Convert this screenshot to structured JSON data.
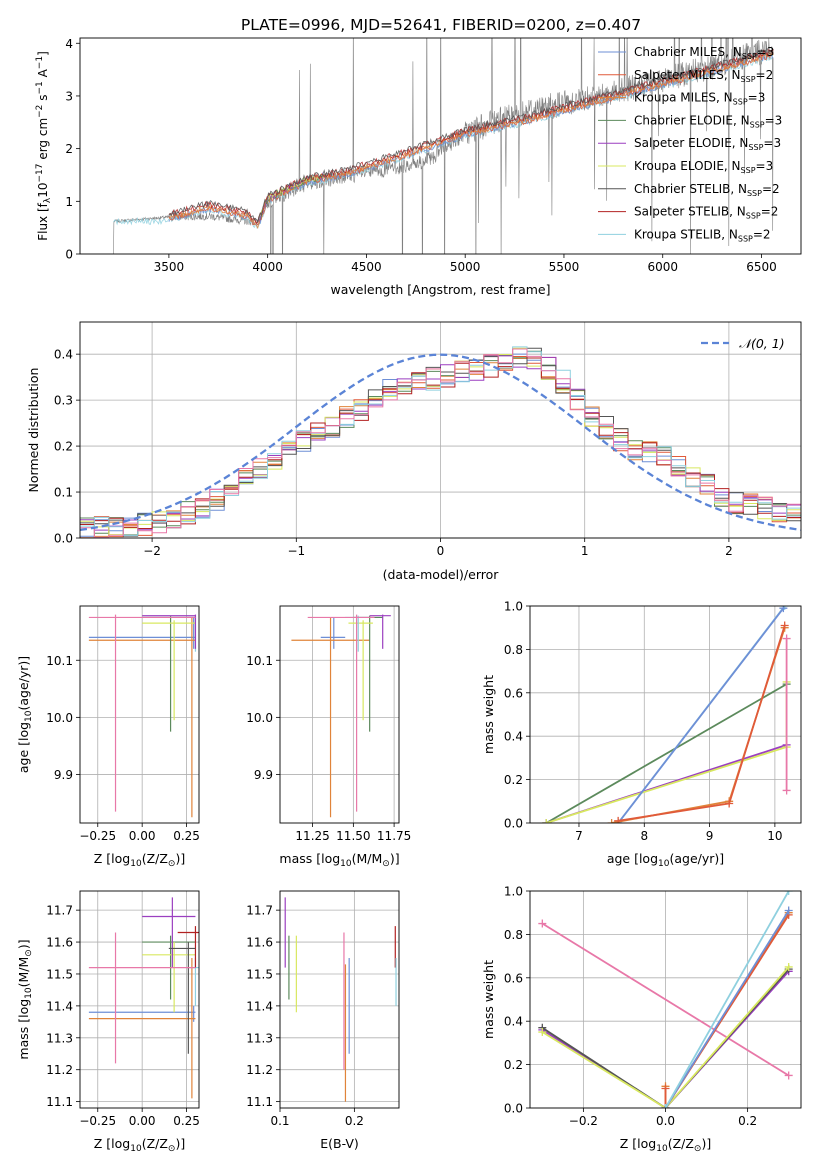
{
  "figure_title": "PLATE=0996, MJD=52641, FIBERID=0200, z=0.407",
  "colors": {
    "Chabrier MILES": "#6e8fd6",
    "Salpeter MILES": "#e05a3a",
    "Kroupa MILES": "#e0843a",
    "Chabrier ELODIE": "#5c8a5c",
    "Salpeter ELODIE": "#9b3fc0",
    "Kroupa ELODIE": "#d8e860",
    "Chabrier STELIB": "#555555",
    "Salpeter STELIB": "#b22222",
    "Kroupa STELIB": "#8fd0df",
    "pink": "#e878a8",
    "data": "#808080",
    "normal": "#5b84d6"
  },
  "chart_data": [
    {
      "id": "spectrum",
      "type": "line",
      "xlabel": "wavelength [Angstrom, rest frame]",
      "ylabel": "Flux [f$_\\lambda$10$^{-17}$ erg cm$^{-2}$ s$^{-1}$ A$^{-1}$]",
      "ylabel_parts": [
        "Flux [f",
        "λ",
        "10",
        "−17",
        " erg cm",
        "−2",
        " s",
        "−1",
        " A",
        "−1",
        "]"
      ],
      "xlim": [
        3050,
        6700
      ],
      "ylim": [
        0,
        4.1
      ],
      "xticks": [
        3500,
        4000,
        4500,
        5000,
        5500,
        6000,
        6500
      ],
      "yticks": [
        0,
        1,
        2,
        3,
        4
      ],
      "legend_position": "top-right",
      "legend": [
        {
          "model": "Chabrier MILES",
          "n": "3"
        },
        {
          "model": "Salpeter MILES",
          "n": "2"
        },
        {
          "model": "Kroupa MILES",
          "n": "3"
        },
        {
          "model": "Chabrier ELODIE",
          "n": "3"
        },
        {
          "model": "Salpeter ELODIE",
          "n": "3"
        },
        {
          "model": "Kroupa ELODIE",
          "n": "3"
        },
        {
          "model": "Chabrier STELIB",
          "n": "2"
        },
        {
          "model": "Salpeter STELIB",
          "n": "2"
        },
        {
          "model": "Kroupa STELIB",
          "n": "2"
        }
      ],
      "legend_suffix": ", N",
      "legend_sub": "SSP",
      "data_anchor": [
        [
          3220,
          0.62
        ],
        [
          3500,
          0.7
        ],
        [
          3700,
          0.72
        ],
        [
          3950,
          0.6
        ],
        [
          4000,
          1.0
        ],
        [
          4200,
          1.35
        ],
        [
          4500,
          1.55
        ],
        [
          4800,
          1.75
        ],
        [
          5000,
          2.3
        ],
        [
          5300,
          2.7
        ],
        [
          5600,
          2.95
        ],
        [
          5900,
          3.2
        ],
        [
          6200,
          3.5
        ],
        [
          6550,
          3.9
        ]
      ],
      "model_anchor": [
        [
          3500,
          0.7
        ],
        [
          3700,
          0.9
        ],
        [
          3900,
          0.75
        ],
        [
          3950,
          0.55
        ],
        [
          4000,
          1.05
        ],
        [
          4200,
          1.4
        ],
        [
          4400,
          1.55
        ],
        [
          4700,
          1.9
        ],
        [
          5000,
          2.3
        ],
        [
          5300,
          2.55
        ],
        [
          5600,
          2.85
        ],
        [
          5900,
          3.15
        ],
        [
          6200,
          3.45
        ],
        [
          6550,
          3.8
        ]
      ]
    },
    {
      "id": "residuals",
      "type": "histogram",
      "xlabel": "(data-model)/error",
      "ylabel": "Normed distribution",
      "xlim": [
        -2.5,
        2.5
      ],
      "ylim": [
        0,
        0.47
      ],
      "xticks": [
        -2,
        -1,
        0,
        1,
        2
      ],
      "yticks": [
        0.0,
        0.1,
        0.2,
        0.3,
        0.4
      ],
      "legend_position": "top-right",
      "legend": [
        "𝒩(0, 1)"
      ],
      "bin_width": 0.1,
      "hist_anchor": [
        [
          -2.5,
          0.02
        ],
        [
          -2.0,
          0.03
        ],
        [
          -1.6,
          0.07
        ],
        [
          -1.3,
          0.14
        ],
        [
          -1.0,
          0.2
        ],
        [
          -0.6,
          0.27
        ],
        [
          -0.3,
          0.33
        ],
        [
          0.0,
          0.35
        ],
        [
          0.3,
          0.37
        ],
        [
          0.6,
          0.4
        ],
        [
          0.8,
          0.36
        ],
        [
          1.0,
          0.28
        ],
        [
          1.3,
          0.2
        ],
        [
          1.6,
          0.17
        ],
        [
          2.0,
          0.08
        ],
        [
          2.5,
          0.05
        ]
      ]
    },
    {
      "id": "age-vs-Z",
      "type": "scatter",
      "xlabel": "Z [log",
      "xlabel_parts": [
        "Z [log",
        "10",
        "(Z/Z",
        "⊙",
        ")]"
      ],
      "ylabel_parts": [
        "age  [log",
        "10",
        "(age/yr)]"
      ],
      "xlim": [
        -0.35,
        0.32
      ],
      "ylim": [
        9.815,
        10.195
      ],
      "xticks": [
        -0.25,
        0.0,
        0.25
      ],
      "xticklabels": [
        "−0.25",
        "0.00",
        "0.25"
      ],
      "yticks": [
        9.9,
        10.0,
        10.1
      ],
      "yticklabels": [
        "9.9",
        "10.0",
        "10.1"
      ],
      "points": [
        {
          "c": "#6e8fd6",
          "x": 0.29,
          "y": 10.14,
          "xl": -0.3,
          "xh": 0.3,
          "yl": 10.12,
          "yh": 10.175
        },
        {
          "c": "#e0843a",
          "x": 0.28,
          "y": 10.135,
          "xl": -0.3,
          "xh": 0.3,
          "yl": 9.825,
          "yh": 10.175
        },
        {
          "c": "#5c8a5c",
          "x": 0.16,
          "y": 10.175,
          "xl": 0.0,
          "xh": 0.3,
          "yl": 9.975,
          "yh": 10.178
        },
        {
          "c": "#d8e860",
          "x": 0.18,
          "y": 10.165,
          "xl": 0.0,
          "xh": 0.3,
          "yl": 9.995,
          "yh": 10.17
        },
        {
          "c": "#8fd0df",
          "x": 0.3,
          "y": 10.175,
          "xl": 0.0,
          "xh": 0.3,
          "yl": 10.115,
          "yh": 10.178
        },
        {
          "c": "#9b3fc0",
          "x": 0.3,
          "y": 10.178,
          "xl": 0.0,
          "xh": 0.3,
          "yl": 10.12,
          "yh": 10.18
        },
        {
          "c": "#e878a8",
          "x": -0.15,
          "y": 10.175,
          "xl": -0.3,
          "xh": 0.3,
          "yl": 9.835,
          "yh": 10.18
        }
      ]
    },
    {
      "id": "age-vs-mass",
      "type": "scatter",
      "xlabel_parts": [
        "mass [log",
        "10",
        "(M/M",
        "⊙",
        ")]"
      ],
      "xlim": [
        11.05,
        11.78
      ],
      "ylim": [
        9.815,
        10.195
      ],
      "xticks": [
        11.25,
        11.5,
        11.75
      ],
      "xticklabels": [
        "11.25",
        "11.50",
        "11.75"
      ],
      "yticks": [
        9.9,
        10.0,
        10.1
      ],
      "yticklabels": [
        "9.9",
        "10.0",
        "10.1"
      ],
      "points": [
        {
          "c": "#6e8fd6",
          "x": 11.38,
          "y": 10.14,
          "xl": 11.3,
          "xh": 11.45,
          "yl": 10.12,
          "yh": 10.175
        },
        {
          "c": "#e0843a",
          "x": 11.36,
          "y": 10.135,
          "xl": 11.12,
          "xh": 11.6,
          "yl": 9.825,
          "yh": 10.175
        },
        {
          "c": "#5c8a5c",
          "x": 11.6,
          "y": 10.175,
          "xl": 11.5,
          "xh": 11.68,
          "yl": 9.975,
          "yh": 10.178
        },
        {
          "c": "#d8e860",
          "x": 11.56,
          "y": 10.165,
          "xl": 11.47,
          "xh": 11.62,
          "yl": 9.995,
          "yh": 10.17
        },
        {
          "c": "#8fd0df",
          "x": 11.53,
          "y": 10.175,
          "xl": 11.45,
          "xh": 11.6,
          "yl": 10.115,
          "yh": 10.178
        },
        {
          "c": "#9b3fc0",
          "x": 11.68,
          "y": 10.178,
          "xl": 11.6,
          "xh": 11.73,
          "yl": 10.12,
          "yh": 10.18
        },
        {
          "c": "#e878a8",
          "x": 11.52,
          "y": 10.175,
          "xl": 11.22,
          "xh": 11.63,
          "yl": 9.835,
          "yh": 10.18
        }
      ]
    },
    {
      "id": "mass-weight-vs-age",
      "type": "line",
      "xlabel_parts": [
        "age  [log",
        "10",
        "(age/yr)]"
      ],
      "ylabel": "mass weight",
      "xlim": [
        6.25,
        10.4
      ],
      "ylim": [
        0,
        1.0
      ],
      "xticks": [
        7,
        8,
        9,
        10
      ],
      "xticklabels": [
        "7",
        "8",
        "9",
        "10"
      ],
      "yticks": [
        0.0,
        0.2,
        0.4,
        0.6,
        0.8,
        1.0
      ],
      "yticklabels": [
        "0.0",
        "0.2",
        "0.4",
        "0.6",
        "0.8",
        "1.0"
      ],
      "series": [
        {
          "c": "#5c8a5c",
          "pts": [
            [
              6.5,
              0.0
            ],
            [
              10.18,
              0.64
            ]
          ]
        },
        {
          "c": "#9b3fc0",
          "pts": [
            [
              6.5,
              0.0
            ],
            [
              10.18,
              0.36
            ]
          ]
        },
        {
          "c": "#d8e860",
          "pts": [
            [
              6.5,
              0.0
            ],
            [
              10.18,
              0.35
            ],
            [
              10.18,
              0.65
            ]
          ]
        },
        {
          "c": "#8fd0df",
          "pts": [
            [
              7.6,
              0.0
            ],
            [
              10.15,
              1.0
            ]
          ]
        },
        {
          "c": "#6e8fd6",
          "pts": [
            [
              7.6,
              0.0
            ],
            [
              10.13,
              0.99
            ]
          ]
        },
        {
          "c": "#e0843a",
          "pts": [
            [
              7.5,
              0.0
            ],
            [
              9.3,
              0.1
            ],
            [
              10.15,
              0.9
            ]
          ]
        },
        {
          "c": "#e05a3a",
          "pts": [
            [
              7.6,
              0.01
            ],
            [
              9.3,
              0.09
            ],
            [
              10.15,
              0.91
            ]
          ]
        },
        {
          "c": "#e878a8",
          "pts": [
            [
              10.18,
              0.85
            ],
            [
              10.18,
              0.15
            ]
          ]
        }
      ]
    },
    {
      "id": "mass-vs-Z",
      "type": "scatter",
      "xlabel_parts": [
        "Z [log",
        "10",
        "(Z/Z",
        "⊙",
        ")]"
      ],
      "ylabel_parts": [
        "mass [log",
        "10",
        "(M/M",
        "⊙",
        ")]"
      ],
      "xlim": [
        -0.35,
        0.32
      ],
      "ylim": [
        11.08,
        11.76
      ],
      "xticks": [
        -0.25,
        0.0,
        0.25
      ],
      "xticklabels": [
        "−0.25",
        "0.00",
        "0.25"
      ],
      "yticks": [
        11.1,
        11.2,
        11.3,
        11.4,
        11.5,
        11.6,
        11.7
      ],
      "yticklabels": [
        "11.1",
        "11.2",
        "11.3",
        "11.4",
        "11.5",
        "11.6",
        "11.7"
      ],
      "points": [
        {
          "c": "#6e8fd6",
          "x": 0.29,
          "y": 11.38,
          "xl": -0.3,
          "xh": 0.3,
          "yl": 11.35,
          "yh": 11.4
        },
        {
          "c": "#e0843a",
          "x": 0.28,
          "y": 11.36,
          "xl": -0.3,
          "xh": 0.3,
          "yl": 11.11,
          "yh": 11.55
        },
        {
          "c": "#5c8a5c",
          "x": 0.16,
          "y": 11.6,
          "xl": 0.0,
          "xh": 0.3,
          "yl": 11.42,
          "yh": 11.62
        },
        {
          "c": "#d8e860",
          "x": 0.18,
          "y": 11.56,
          "xl": 0.0,
          "xh": 0.3,
          "yl": 11.38,
          "yh": 11.6
        },
        {
          "c": "#8fd0df",
          "x": 0.3,
          "y": 11.52,
          "xl": 0.25,
          "xh": 0.32,
          "yl": 11.4,
          "yh": 11.55
        },
        {
          "c": "#9b3fc0",
          "x": 0.17,
          "y": 11.68,
          "xl": 0.0,
          "xh": 0.3,
          "yl": 11.52,
          "yh": 11.74
        },
        {
          "c": "#b22222",
          "x": 0.3,
          "y": 11.63,
          "xl": 0.2,
          "xh": 0.32,
          "yl": 11.52,
          "yh": 11.65
        },
        {
          "c": "#555555",
          "x": 0.26,
          "y": 11.58,
          "xl": 0.15,
          "xh": 0.3,
          "yl": 11.25,
          "yh": 11.6
        },
        {
          "c": "#e878a8",
          "x": -0.15,
          "y": 11.52,
          "xl": -0.3,
          "xh": 0.3,
          "yl": 11.22,
          "yh": 11.63
        }
      ]
    },
    {
      "id": "mass-vs-EBV",
      "type": "scatter",
      "xlabel": "E(B-V)",
      "xlim": [
        0.1,
        0.26
      ],
      "ylim": [
        11.08,
        11.76
      ],
      "xticks": [
        0.1,
        0.2
      ],
      "xticklabels": [
        "0.1",
        "0.2"
      ],
      "yticks": [
        11.1,
        11.2,
        11.3,
        11.4,
        11.5,
        11.6,
        11.7
      ],
      "yticklabels": [
        "11.1",
        "11.2",
        "11.3",
        "11.4",
        "11.5",
        "11.6",
        "11.7"
      ],
      "points": [
        {
          "c": "#9b3fc0",
          "x": 0.107,
          "yl": 11.52,
          "yh": 11.74
        },
        {
          "c": "#5c8a5c",
          "x": 0.112,
          "yl": 11.42,
          "yh": 11.62
        },
        {
          "c": "#d8e860",
          "x": 0.122,
          "yl": 11.38,
          "yh": 11.62
        },
        {
          "c": "#e878a8",
          "x": 0.186,
          "yl": 11.2,
          "yh": 11.63
        },
        {
          "c": "#e0843a",
          "x": 0.188,
          "yl": 11.1,
          "yh": 11.53
        },
        {
          "c": "#6e8fd6",
          "x": 0.193,
          "yl": 11.25,
          "yh": 11.55
        },
        {
          "c": "#b22222",
          "x": 0.255,
          "yl": 11.52,
          "yh": 11.65
        },
        {
          "c": "#8fd0df",
          "x": 0.256,
          "yl": 11.4,
          "yh": 11.55
        }
      ]
    },
    {
      "id": "mass-weight-vs-Z",
      "type": "line",
      "xlabel_parts": [
        "Z [log",
        "10",
        "(Z/Z",
        "⊙",
        ")]"
      ],
      "ylabel": "mass weight",
      "xlim": [
        -0.33,
        0.33
      ],
      "ylim": [
        0,
        1.0
      ],
      "xticks": [
        -0.2,
        0.0,
        0.2
      ],
      "xticklabels": [
        "−0.2",
        "0.0",
        "0.2"
      ],
      "yticks": [
        0.0,
        0.2,
        0.4,
        0.6,
        0.8,
        1.0
      ],
      "yticklabels": [
        "0.0",
        "0.2",
        "0.4",
        "0.6",
        "0.8",
        "1.0"
      ],
      "series": [
        {
          "c": "#e878a8",
          "pts": [
            [
              -0.3,
              0.85
            ],
            [
              0.3,
              0.15
            ]
          ]
        },
        {
          "c": "#9b3fc0",
          "pts": [
            [
              -0.3,
              0.36
            ],
            [
              0.0,
              0.0
            ],
            [
              0.3,
              0.63
            ]
          ]
        },
        {
          "c": "#555555",
          "pts": [
            [
              -0.3,
              0.37
            ],
            [
              0.0,
              0.0
            ],
            [
              0.3,
              0.64
            ]
          ]
        },
        {
          "c": "#d8e860",
          "pts": [
            [
              -0.3,
              0.35
            ],
            [
              0.0,
              0.0
            ],
            [
              0.3,
              0.65
            ]
          ]
        },
        {
          "c": "#e0843a",
          "pts": [
            [
              0.0,
              0.1
            ],
            [
              0.0,
              0.0
            ],
            [
              0.3,
              0.9
            ]
          ]
        },
        {
          "c": "#e05a3a",
          "pts": [
            [
              0.0,
              0.09
            ],
            [
              0.0,
              0.0
            ],
            [
              0.3,
              0.89
            ]
          ]
        },
        {
          "c": "#6e8fd6",
          "pts": [
            [
              0.0,
              0.0
            ],
            [
              0.3,
              0.91
            ]
          ]
        },
        {
          "c": "#8fd0df",
          "pts": [
            [
              0.0,
              0.0
            ],
            [
              0.3,
              1.0
            ]
          ]
        }
      ]
    }
  ]
}
